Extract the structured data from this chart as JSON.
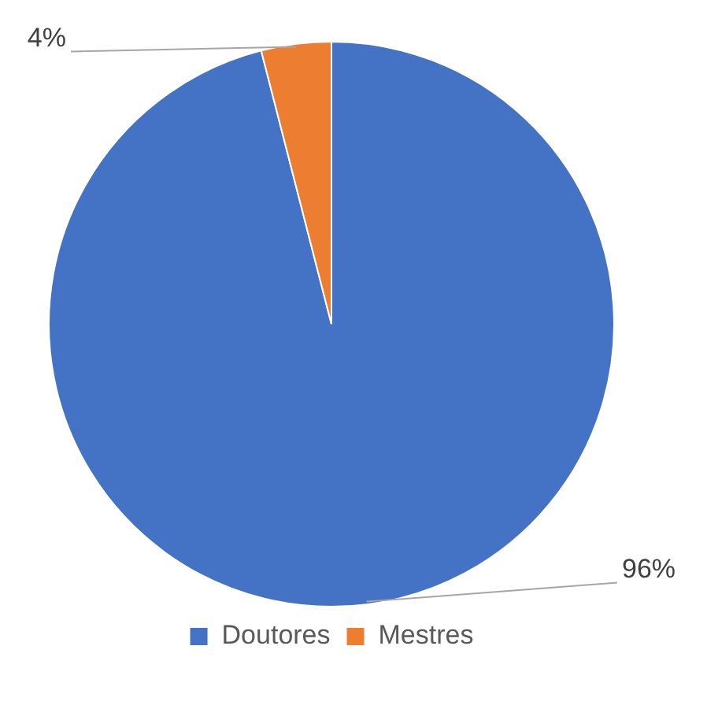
{
  "chart_data": {
    "type": "pie",
    "categories": [
      "Doutores",
      "Mestres"
    ],
    "values": [
      96,
      4
    ],
    "colors": [
      "#4472c4",
      "#ed7d31"
    ],
    "value_labels": [
      "96%",
      "4%"
    ],
    "legend": "bottom"
  }
}
